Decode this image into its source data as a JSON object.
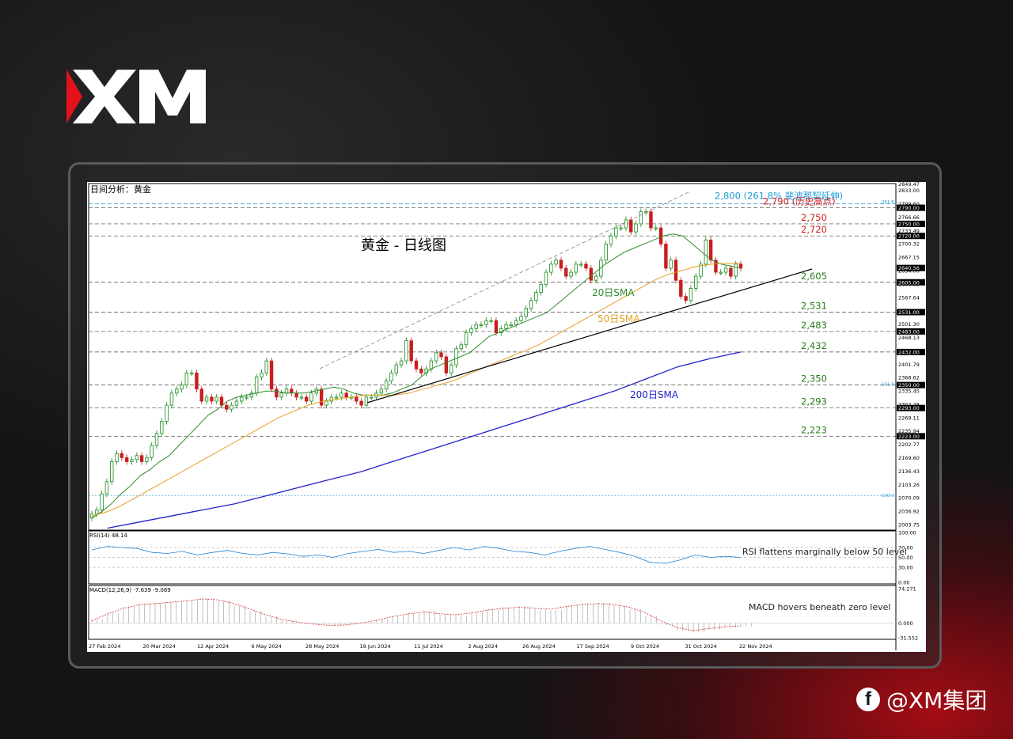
{
  "brand": {
    "logo_text": "XM",
    "footer_handle": "@XM集团",
    "footer_icon": "facebook-icon"
  },
  "colors": {
    "sma20": "#2e8b2e",
    "sma50": "#e6a020",
    "sma200": "#2222cc",
    "bull": "#1a8a1a",
    "bear": "#c81e1e",
    "fib": "#1e9bd7",
    "resist": "#d62020",
    "support": "#2a7a1a"
  },
  "chart_data": {
    "type": "line",
    "title": "日间分析：黄金",
    "subtitle": "黄金 - 日线图",
    "price_range": [
      1990,
      2850
    ],
    "x_ticks": [
      "27 Feb 2024",
      "20 Mar 2024",
      "12 Apr 2024",
      "6 May 2024",
      "28 May 2024",
      "19 Jun 2024",
      "11 Jul 2024",
      "2 Aug 2024",
      "26 Aug 2024",
      "17 Sep 2024",
      "9 Oct 2024",
      "31 Oct 2024",
      "22 Nov 2024"
    ],
    "y_ticks": [
      "2849.47",
      "2833.00",
      "2799.60",
      "2766.66",
      "2733.49",
      "2700.32",
      "2667.15",
      "2634.00",
      "2600.83",
      "2567.64",
      "2534.47",
      "2501.30",
      "2468.13",
      "2434.96",
      "2401.79",
      "2368.62",
      "2335.45",
      "2302.28",
      "2269.11",
      "2235.94",
      "2202.77",
      "2169.60",
      "2136.43",
      "2103.26",
      "2070.09",
      "2036.92",
      "2003.75"
    ],
    "close": [
      2030,
      2040,
      2080,
      2110,
      2160,
      2180,
      2170,
      2160,
      2165,
      2175,
      2160,
      2170,
      2200,
      2230,
      2260,
      2300,
      2330,
      2340,
      2350,
      2380,
      2380,
      2340,
      2310,
      2320,
      2310,
      2320,
      2300,
      2290,
      2300,
      2310,
      2320,
      2320,
      2330,
      2370,
      2380,
      2410,
      2340,
      2320,
      2330,
      2340,
      2330,
      2320,
      2320,
      2310,
      2330,
      2340,
      2300,
      2310,
      2320,
      2320,
      2330,
      2320,
      2320,
      2310,
      2300,
      2320,
      2320,
      2330,
      2340,
      2360,
      2380,
      2400,
      2410,
      2460,
      2410,
      2390,
      2380,
      2390,
      2410,
      2430,
      2420,
      2380,
      2400,
      2440,
      2450,
      2480,
      2490,
      2500,
      2500,
      2510,
      2510,
      2480,
      2490,
      2500,
      2500,
      2510,
      2520,
      2540,
      2560,
      2580,
      2600,
      2630,
      2650,
      2660,
      2640,
      2620,
      2630,
      2650,
      2650,
      2640,
      2610,
      2620,
      2660,
      2700,
      2720,
      2740,
      2740,
      2760,
      2730,
      2750,
      2780,
      2780,
      2740,
      2740,
      2700,
      2640,
      2660,
      2610,
      2570,
      2560,
      2590,
      2620,
      2650,
      2710,
      2660,
      2630,
      2630,
      2640,
      2620,
      2650,
      2640
    ],
    "series": [
      {
        "name": "20日SMA",
        "values": [
          2020,
          2035,
          2055,
          2080,
          2100,
          2125,
          2140,
          2160,
          2175,
          2200,
          2225,
          2250,
          2275,
          2290,
          2310,
          2320,
          2325,
          2330,
          2335,
          2335,
          2330,
          2330,
          2330,
          2335,
          2340,
          2345,
          2340,
          2330,
          2325,
          2325,
          2325,
          2330,
          2340,
          2350,
          2370,
          2390,
          2400,
          2410,
          2420,
          2430,
          2450,
          2470,
          2480,
          2490,
          2500,
          2510,
          2520,
          2530,
          2550,
          2570,
          2590,
          2610,
          2630,
          2650,
          2665,
          2680,
          2690,
          2700,
          2710,
          2720,
          2725,
          2720,
          2700,
          2680,
          2660,
          2650,
          2645,
          2640
        ]
      },
      {
        "name": "50日SMA",
        "values": [
          2025,
          2035,
          2050,
          2070,
          2090,
          2110,
          2130,
          2150,
          2170,
          2190,
          2210,
          2230,
          2250,
          2270,
          2285,
          2300,
          2310,
          2315,
          2320,
          2325,
          2325,
          2325,
          2330,
          2340,
          2350,
          2360,
          2375,
          2390,
          2405,
          2420,
          2435,
          2450,
          2470,
          2490,
          2510,
          2530,
          2550,
          2570,
          2590,
          2610,
          2625,
          2635,
          2645,
          2650,
          2652,
          2652
        ]
      },
      {
        "name": "200日SMA",
        "values": [
          1995,
          2010,
          2025,
          2040,
          2055,
          2075,
          2095,
          2115,
          2135,
          2160,
          2185,
          2210,
          2235,
          2260,
          2285,
          2310,
          2335,
          2365,
          2395,
          2415,
          2432
        ]
      }
    ],
    "levels": [
      {
        "value": 2800,
        "label": "2,800 (261.8% 斐波那契延伸)",
        "kind": "fib"
      },
      {
        "value": 2790,
        "label": "2,790 (历史高点)",
        "kind": "resist"
      },
      {
        "value": 2750,
        "label": "2,750",
        "kind": "resist"
      },
      {
        "value": 2720,
        "label": "2,720",
        "kind": "resist"
      },
      {
        "value": 2605,
        "label": "2,605",
        "kind": "support"
      },
      {
        "value": 2531,
        "label": "2,531",
        "kind": "support"
      },
      {
        "value": 2483,
        "label": "2,483",
        "kind": "support"
      },
      {
        "value": 2432,
        "label": "2,432",
        "kind": "support"
      },
      {
        "value": 2350,
        "label": "2,350",
        "kind": "support"
      },
      {
        "value": 2293,
        "label": "2,293",
        "kind": "support"
      },
      {
        "value": 2223,
        "label": "2,223",
        "kind": "support"
      }
    ],
    "level_tags": [
      "2790.00",
      "2750.00",
      "2720.00",
      "2640.56",
      "2605.00",
      "2531.00",
      "2483.00",
      "2432.00",
      "2350.00",
      "2293.00",
      "2223.00"
    ],
    "fib_tags": [
      "261.8",
      "161.8",
      "100.0"
    ],
    "rsi": {
      "title": "RSI(14) 48.14",
      "ticks": [
        "100.00",
        "70.00",
        "50.00",
        "30.00",
        "0.00"
      ],
      "annotation": "RSI flattens marginally below 50 level",
      "values": [
        65,
        72,
        70,
        68,
        60,
        58,
        62,
        55,
        60,
        64,
        58,
        55,
        60,
        57,
        52,
        55,
        50,
        58,
        62,
        66,
        60,
        62,
        58,
        64,
        70,
        65,
        72,
        68,
        62,
        60,
        55,
        62,
        68,
        72,
        66,
        60,
        52,
        40,
        38,
        45,
        55,
        50,
        52,
        50
      ]
    },
    "macd": {
      "title": "MACD(12,26,9) -7.639 -9.069",
      "ticks": [
        "74.271",
        "0.000",
        "-31.552"
      ],
      "annotation": "MACD hovers beneath zero level",
      "range": [
        -31.552,
        74.271
      ],
      "signal": [
        5,
        20,
        32,
        40,
        42,
        45,
        48,
        52,
        50,
        42,
        30,
        18,
        8,
        2,
        -2,
        -5,
        -4,
        0,
        6,
        14,
        20,
        24,
        20,
        18,
        22,
        28,
        32,
        34,
        32,
        30,
        36,
        40,
        42,
        40,
        34,
        22,
        4,
        -10,
        -16,
        -12,
        -8,
        -6
      ],
      "hist": [
        8,
        22,
        35,
        42,
        44,
        46,
        50,
        54,
        48,
        38,
        26,
        14,
        6,
        0,
        -4,
        -6,
        -3,
        2,
        8,
        16,
        22,
        26,
        18,
        16,
        24,
        30,
        34,
        36,
        30,
        28,
        38,
        42,
        44,
        38,
        30,
        16,
        -4,
        -16,
        -20,
        -14,
        -9,
        -7
      ]
    }
  }
}
